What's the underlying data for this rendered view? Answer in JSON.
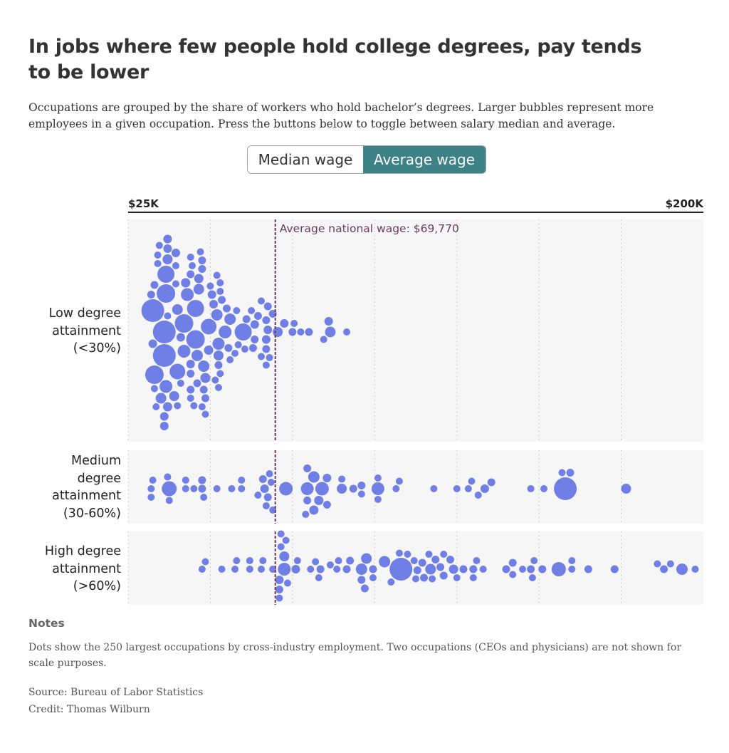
{
  "title": "In jobs where few people hold college degrees, pay tends to be lower",
  "subtitle": "Occupations are grouped by the share of workers who hold bachelor’s degrees. Larger bubbles represent more employees in a given occupation. Press the buttons below to toggle between salary median and average.",
  "toggle": {
    "median_label": "Median wage",
    "average_label": "Average wage",
    "selected": "Average wage"
  },
  "axis": {
    "min_label": "$25K",
    "max_label": "$200K"
  },
  "reference_line": {
    "label": "Average national wage: $69,770",
    "value": 69770
  },
  "groups": [
    {
      "id": "low",
      "label_lines": [
        "Low degree",
        "attainment",
        "(<30%)"
      ]
    },
    {
      "id": "medium",
      "label_lines": [
        "Medium",
        "degree",
        "attainment",
        "(30-60%)"
      ]
    },
    {
      "id": "high",
      "label_lines": [
        "High degree",
        "attainment",
        "(>60%)"
      ]
    }
  ],
  "notes": {
    "heading": "Notes",
    "text": "Dots show the 250 largest occupations by cross-industry employment. Two occupations (CEOs and physicians) are not shown for scale purposes."
  },
  "source": "Source: Bureau of Labor Statistics",
  "credit": "Credit: Thomas Wilburn",
  "colors": {
    "dot": "#6f7fe6",
    "reference": "#6b3b5c",
    "accent": "#3d8286",
    "panel": "#f6f6f6"
  },
  "chart_data": {
    "type": "scatter",
    "xlim": [
      25000,
      200000
    ],
    "grid_values": [
      50000,
      75000,
      100000,
      125000,
      150000,
      175000
    ],
    "reference": 69770,
    "value_key": [
      "wage_usd",
      "relative_size"
    ],
    "series": [
      {
        "name": "Low degree attainment (<30%)",
        "points": [
          [
            33000,
            1
          ],
          [
            37000,
            1.2
          ],
          [
            36500,
            2.6
          ],
          [
            46000,
            1.1
          ],
          [
            46000,
            1.6
          ],
          [
            47500,
            1
          ],
          [
            34000,
            1
          ],
          [
            39500,
            1
          ],
          [
            42000,
            1.8
          ],
          [
            46500,
            1.5
          ],
          [
            37000,
            1
          ],
          [
            36000,
            3.2
          ],
          [
            44000,
            1.1
          ],
          [
            48500,
            1.4
          ],
          [
            53000,
            1
          ],
          [
            32000,
            1.1
          ],
          [
            39000,
            1.4
          ],
          [
            46500,
            1.3
          ],
          [
            53000,
            1
          ],
          [
            48000,
            1.6
          ],
          [
            41000,
            1
          ],
          [
            54500,
            1.8
          ],
          [
            32500,
            1.2
          ],
          [
            36500,
            1.8
          ],
          [
            44000,
            1.2
          ],
          [
            49500,
            1.3
          ],
          [
            53500,
            1.1
          ],
          [
            58500,
            1
          ],
          [
            67000,
            1.1
          ],
          [
            32500,
            3.2
          ],
          [
            37000,
            1.4
          ],
          [
            42000,
            2.6
          ],
          [
            47000,
            1
          ],
          [
            50000,
            1
          ],
          [
            52500,
            1.4
          ],
          [
            55500,
            1.1
          ],
          [
            60000,
            2.4
          ],
          [
            63500,
            1.1
          ],
          [
            67000,
            1.1
          ],
          [
            65500,
            1
          ],
          [
            67500,
            1.2
          ],
          [
            33500,
            1
          ],
          [
            35000,
            1.5
          ],
          [
            39500,
            1.2
          ],
          [
            44500,
            1
          ],
          [
            48000,
            1.1
          ],
          [
            51000,
            1.2
          ],
          [
            53000,
            1
          ],
          [
            58000,
            1
          ],
          [
            61000,
            1.1
          ],
          [
            63500,
            1.2
          ],
          [
            65500,
            1
          ],
          [
            68000,
            1
          ],
          [
            69000,
            1.1
          ],
          [
            72500,
            1.2
          ],
          [
            75500,
            1
          ],
          [
            77500,
            1
          ],
          [
            84500,
            1
          ],
          [
            86500,
            1.5
          ],
          [
            91500,
            1
          ],
          [
            36000,
            1.2
          ],
          [
            39500,
            1
          ],
          [
            42500,
            1.3
          ],
          [
            47500,
            1.1
          ],
          [
            51500,
            1
          ],
          [
            56000,
            1.6
          ],
          [
            62500,
            1
          ],
          [
            64500,
            1.1
          ],
          [
            67000,
            1.2
          ],
          [
            70500,
            1.4
          ],
          [
            75000,
            1.1
          ],
          [
            80000,
            1.1
          ],
          [
            34000,
            1
          ],
          [
            36500,
            2.4
          ],
          [
            40000,
            1
          ],
          [
            44000,
            1.1
          ],
          [
            45500,
            2.6
          ],
          [
            50500,
            1.2
          ],
          [
            52500,
            1
          ],
          [
            55000,
            1.1
          ],
          [
            57500,
            1
          ],
          [
            60500,
            1
          ],
          [
            63000,
            1.1
          ],
          [
            67500,
            1.1
          ],
          [
            86000,
            1.2
          ],
          [
            34500,
            1
          ],
          [
            41000,
            1.2
          ],
          [
            44000,
            1
          ],
          [
            48500,
            1.1
          ],
          [
            52500,
            1.1
          ],
          [
            56000,
            1
          ],
          [
            67000,
            1
          ],
          [
            33000,
            1.1
          ],
          [
            37000,
            1.2
          ],
          [
            43000,
            1.8
          ],
          [
            52500,
            1.7
          ],
          [
            36000,
            3.2
          ],
          [
            44000,
            1.1
          ],
          [
            47500,
            1.1
          ],
          [
            52000,
            1
          ],
          [
            44000,
            1
          ],
          [
            49500,
            2.2
          ],
          [
            40000,
            1.5
          ],
          [
            45000,
            1
          ],
          [
            48500,
            1
          ],
          [
            52000,
            1.6
          ],
          [
            36000,
            1.2
          ],
          [
            45500,
            2.4
          ],
          [
            33000,
            2.6
          ],
          [
            37000,
            1.3
          ],
          [
            40000,
            2.2
          ]
        ]
      },
      {
        "name": "Medium degree attainment (30-60%)",
        "points": [
          [
            32000,
            1
          ],
          [
            37500,
            2.1
          ],
          [
            42500,
            1
          ],
          [
            48000,
            1
          ],
          [
            52000,
            1
          ],
          [
            56500,
            1
          ],
          [
            59500,
            1
          ],
          [
            64500,
            1
          ],
          [
            66500,
            1.2
          ],
          [
            73000,
            1.9
          ],
          [
            79000,
            1
          ],
          [
            83000,
            1.3
          ],
          [
            85500,
            1.2
          ],
          [
            90000,
            1.4
          ],
          [
            96000,
            1
          ],
          [
            101000,
            1.8
          ],
          [
            106500,
            1
          ],
          [
            118000,
            1
          ],
          [
            125000,
            1
          ],
          [
            128500,
            1
          ],
          [
            133500,
            1.2
          ],
          [
            135500,
            1.1
          ],
          [
            147500,
            1
          ],
          [
            158000,
            3.2
          ],
          [
            176500,
            1.4
          ],
          [
            32500,
            1
          ],
          [
            37000,
            1
          ],
          [
            47500,
            1.1
          ],
          [
            59500,
            1
          ],
          [
            66000,
            1.1
          ],
          [
            79500,
            1.1
          ],
          [
            93500,
            1.1
          ],
          [
            96000,
            1.1
          ],
          [
            101000,
            1
          ],
          [
            107500,
            1
          ],
          [
            129500,
            1
          ],
          [
            151500,
            1
          ],
          [
            159500,
            1.1
          ],
          [
            32000,
            1
          ],
          [
            42500,
            1
          ],
          [
            47500,
            1.1
          ],
          [
            68500,
            1
          ],
          [
            81500,
            1.3
          ],
          [
            85500,
            1.1
          ],
          [
            90000,
            1
          ],
          [
            101000,
            1
          ],
          [
            131500,
            1
          ],
          [
            45000,
            1
          ],
          [
            67500,
            1.1
          ],
          [
            79500,
            1.1
          ],
          [
            84000,
            1.9
          ],
          [
            81500,
            1.6
          ],
          [
            68000,
            1
          ],
          [
            67000,
            1
          ],
          [
            79500,
            1.8
          ],
          [
            157000,
            1
          ],
          [
            69000,
            1
          ],
          [
            37500,
            1
          ]
        ]
      },
      {
        "name": "High degree attainment (>60%)",
        "points": [
          [
            47500,
            1
          ],
          [
            53500,
            1
          ],
          [
            57500,
            1
          ],
          [
            62000,
            1
          ],
          [
            65500,
            1
          ],
          [
            69000,
            1
          ],
          [
            71500,
            1
          ],
          [
            72500,
            1.4
          ],
          [
            76000,
            1.2
          ],
          [
            82000,
            1
          ],
          [
            83500,
            1.1
          ],
          [
            88500,
            1
          ],
          [
            91500,
            1.1
          ],
          [
            96000,
            1.1
          ],
          [
            97500,
            1.5
          ],
          [
            103000,
            1.6
          ],
          [
            107500,
            1
          ],
          [
            108000,
            3.2
          ],
          [
            112500,
            1
          ],
          [
            114500,
            1.1
          ],
          [
            117000,
            1.5
          ],
          [
            120000,
            1.1
          ],
          [
            127000,
            1.1
          ],
          [
            130000,
            1.1
          ],
          [
            133000,
            1
          ],
          [
            140000,
            1.1
          ],
          [
            147500,
            1.1
          ],
          [
            151000,
            1.1
          ],
          [
            156000,
            2
          ],
          [
            160000,
            1
          ],
          [
            165000,
            1.1
          ],
          [
            173000,
            1.1
          ],
          [
            186000,
            1
          ],
          [
            190000,
            1
          ],
          [
            193500,
            1.6
          ],
          [
            197500,
            1
          ],
          [
            48500,
            1
          ],
          [
            58000,
            1
          ],
          [
            62000,
            1
          ],
          [
            66000,
            1
          ],
          [
            71000,
            1
          ],
          [
            76500,
            1
          ],
          [
            80500,
            1
          ],
          [
            83000,
            1
          ],
          [
            86500,
            1
          ],
          [
            92500,
            1.1
          ],
          [
            99500,
            1
          ],
          [
            105000,
            1
          ],
          [
            112000,
            1
          ],
          [
            116500,
            1
          ],
          [
            121000,
            1
          ],
          [
            131000,
            1
          ],
          [
            142000,
            1
          ],
          [
            148500,
            1
          ],
          [
            71000,
            1.1
          ],
          [
            73500,
            1
          ],
          [
            73000,
            1
          ],
          [
            71000,
            1.2
          ],
          [
            72500,
            1.8
          ],
          [
            96000,
            1.6
          ],
          [
            115000,
            1.1
          ],
          [
            118500,
            1.1
          ],
          [
            121000,
            1.1
          ],
          [
            123000,
            1.1
          ],
          [
            125000,
            1
          ],
          [
            145000,
            1
          ],
          [
            142000,
            1.1
          ],
          [
            124000,
            1.3
          ],
          [
            130000,
            1
          ],
          [
            117500,
            1
          ],
          [
            113000,
            1.1
          ],
          [
            110000,
            1
          ],
          [
            97000,
            1.1
          ],
          [
            99500,
            1.1
          ],
          [
            89000,
            1
          ],
          [
            71500,
            1
          ],
          [
            148000,
            1
          ],
          [
            160000,
            1
          ],
          [
            188000,
            1.1
          ]
        ]
      }
    ]
  }
}
